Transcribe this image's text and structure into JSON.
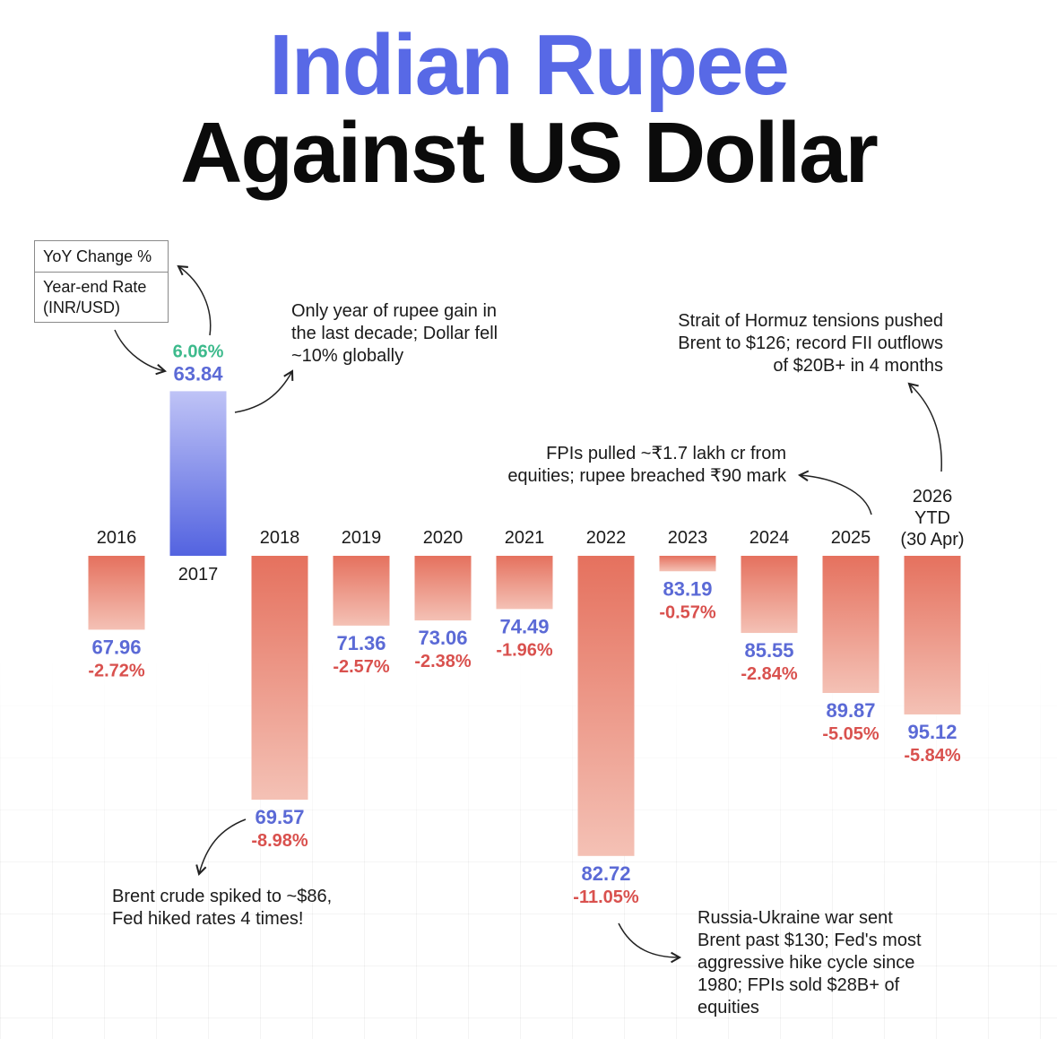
{
  "title": {
    "line1": "Indian Rupee",
    "line2": "Against US Dollar"
  },
  "legend": {
    "yoy_label": "YoY Change %",
    "rate_label_line1": "Year-end Rate",
    "rate_label_line2": "(INR/USD)"
  },
  "colors": {
    "title_accent": "#5869e6",
    "rate_text": "#5b6ad6",
    "negative_change_text": "#d9514e",
    "positive_change_text": "#3dba8c",
    "negative_bar_top": "#e5715e",
    "negative_bar_bottom": "#f4c1b5",
    "positive_bar_top": "#bfc3f6",
    "positive_bar_bottom": "#5363e0"
  },
  "chart_data": {
    "type": "bar",
    "title": "",
    "xlabel": "",
    "ylabel": "",
    "series": [
      {
        "name": "YoY Change %",
        "values": [
          -2.72,
          6.06,
          -8.98,
          -2.57,
          -2.38,
          -1.96,
          -11.05,
          -0.57,
          -2.84,
          -5.05,
          -5.84
        ]
      },
      {
        "name": "Year-end Rate (INR/USD)",
        "values": [
          67.96,
          63.84,
          69.57,
          71.36,
          73.06,
          74.49,
          82.72,
          83.19,
          85.55,
          89.87,
          95.12
        ]
      }
    ],
    "points": [
      {
        "year": "2016",
        "change": -2.72,
        "change_label": "-2.72%",
        "rate": "67.96"
      },
      {
        "year": "2017",
        "change": 6.06,
        "change_label": "6.06%",
        "rate": "63.84"
      },
      {
        "year": "2018",
        "change": -8.98,
        "change_label": "-8.98%",
        "rate": "69.57"
      },
      {
        "year": "2019",
        "change": -2.57,
        "change_label": "-2.57%",
        "rate": "71.36"
      },
      {
        "year": "2020",
        "change": -2.38,
        "change_label": "-2.38%",
        "rate": "73.06"
      },
      {
        "year": "2021",
        "change": -1.96,
        "change_label": "-1.96%",
        "rate": "74.49"
      },
      {
        "year": "2022",
        "change": -11.05,
        "change_label": "-11.05%",
        "rate": "82.72"
      },
      {
        "year": "2023",
        "change": -0.57,
        "change_label": "-0.57%",
        "rate": "83.19"
      },
      {
        "year": "2024",
        "change": -2.84,
        "change_label": "-2.84%",
        "rate": "85.55"
      },
      {
        "year": "2025",
        "change": -5.05,
        "change_label": "-5.05%",
        "rate": "89.87"
      },
      {
        "year_lines": [
          "2026",
          "YTD",
          "(30 Apr)"
        ],
        "change": -5.84,
        "change_label": "-5.84%",
        "rate": "95.12"
      }
    ]
  },
  "annotations": {
    "y2017": [
      "Only year of rupee gain in",
      "the last decade; Dollar fell",
      "~10% globally"
    ],
    "y2018": [
      "Brent crude spiked to ~$86,",
      "Fed hiked rates 4 times!"
    ],
    "y2022": [
      "Russia-Ukraine war sent",
      "Brent past $130; Fed's most",
      "aggressive hike cycle since",
      "1980; FPIs sold $28B+ of",
      "equities"
    ],
    "y2025": [
      "FPIs pulled ~₹1.7 lakh cr from",
      "equities; rupee breached ₹90 mark"
    ],
    "y2026": [
      "Strait of Hormuz tensions pushed",
      "Brent to $126; record FII outflows",
      "of $20B+ in 4 months"
    ]
  }
}
